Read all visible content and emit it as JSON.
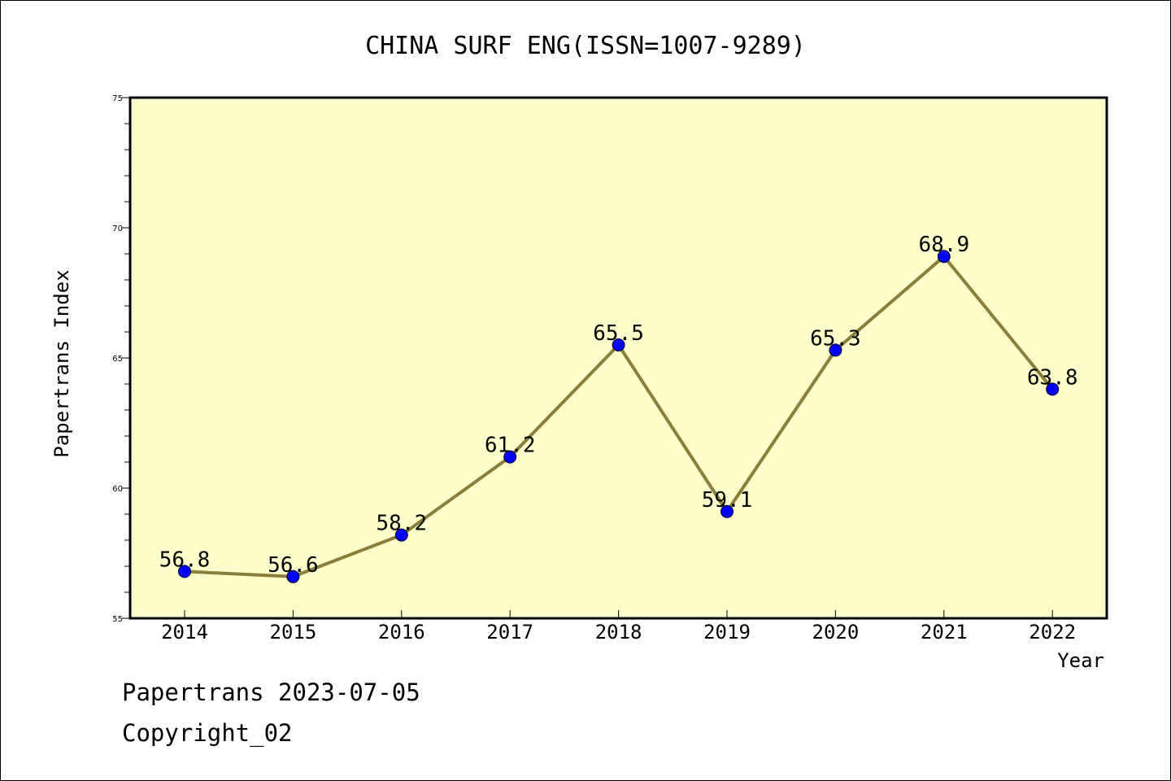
{
  "chart_data": {
    "type": "line",
    "title": "CHINA SURF ENG(ISSN=1007-9289)",
    "xlabel": "Year",
    "ylabel": "Papertrans Index",
    "categories": [
      "2014",
      "2015",
      "2016",
      "2017",
      "2018",
      "2019",
      "2020",
      "2021",
      "2022"
    ],
    "values": [
      56.8,
      56.6,
      58.2,
      61.2,
      65.5,
      59.1,
      65.3,
      68.9,
      63.8
    ],
    "data_labels": [
      "56.8",
      "56.6",
      "58.2",
      "61.2",
      "65.5",
      "59.1",
      "65.3",
      "68.9",
      "63.8"
    ],
    "ylim": [
      55,
      75
    ],
    "yticks": [
      "55",
      "60",
      "65",
      "70",
      "75"
    ],
    "grid": false,
    "colors": {
      "plot_background": "#ffffcc",
      "line": "#8b7d3a",
      "marker": "#0000ff"
    }
  },
  "footer": {
    "date_text": "Papertrans 2023-07-05",
    "copyright_text": "Copyright_02"
  }
}
